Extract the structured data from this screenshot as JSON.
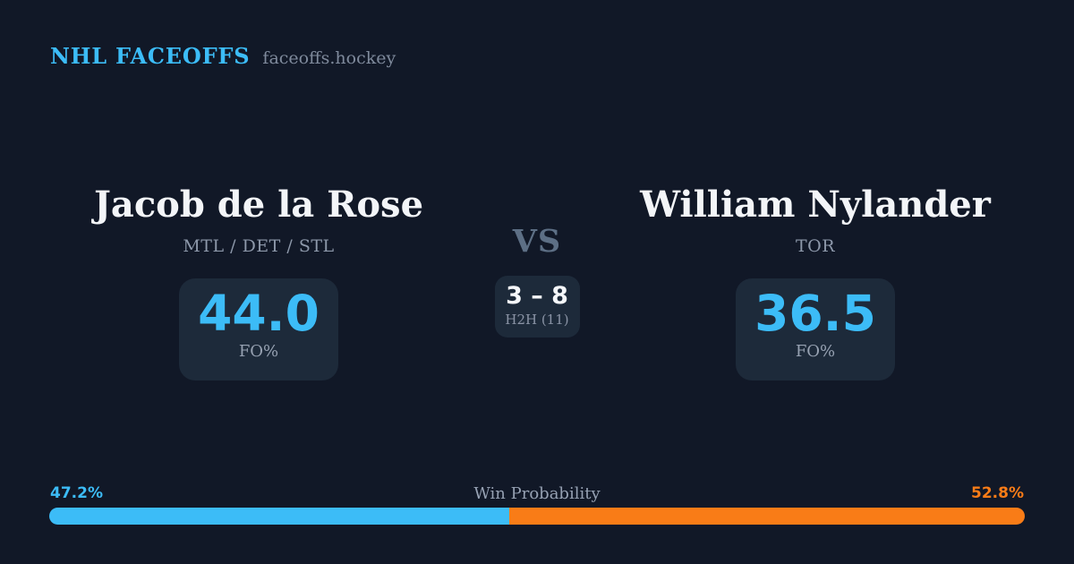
{
  "header": {
    "brand": "NHL FACEOFFS",
    "domain": "faceoffs.hockey"
  },
  "matchup": {
    "left": {
      "name": "Jacob de la Rose",
      "teams": "MTL / DET / STL",
      "fo_value": "44.0",
      "fo_label": "FO%"
    },
    "right": {
      "name": "William Nylander",
      "teams": "TOR",
      "fo_value": "36.5",
      "fo_label": "FO%"
    },
    "vs_label": "VS",
    "h2h": {
      "score": "3 – 8",
      "label": "H2H (11)"
    }
  },
  "win_probability": {
    "label": "Win Probability",
    "left": {
      "text": "47.2%",
      "value": 47.2,
      "color": "#3cbcf7"
    },
    "right": {
      "text": "52.8%",
      "value": 52.8,
      "color": "#f97c17"
    }
  },
  "colors": {
    "background": "#111827",
    "card": "#1d2a3a",
    "accent_blue": "#3cbcf7",
    "accent_orange": "#f97c17",
    "text_primary": "#f3f5f8",
    "text_muted": "#8d98aa"
  }
}
